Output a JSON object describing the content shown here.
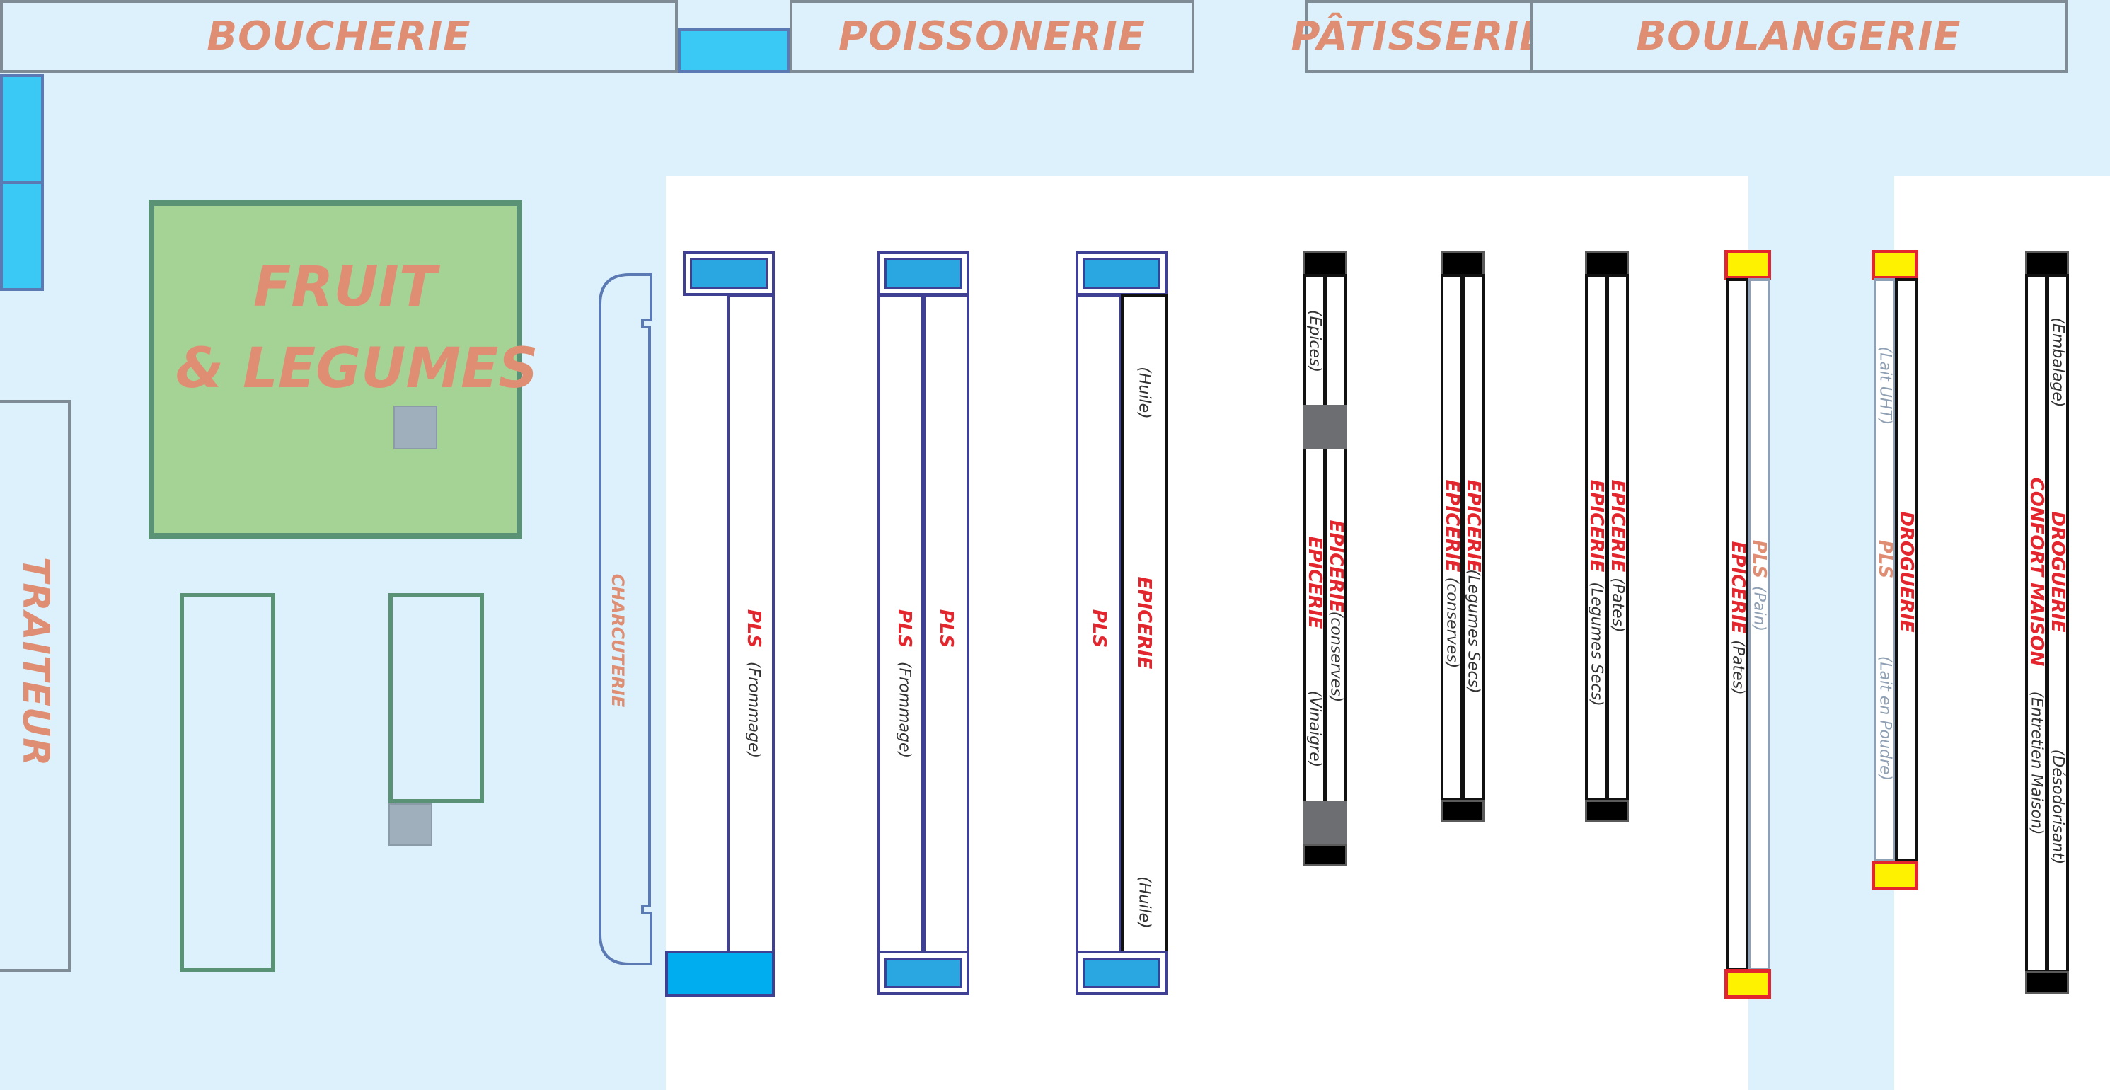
{
  "departments": {
    "boucherie": "BOUCHERIE",
    "poissonerie": "POISSONERIE",
    "patisserie": "PÂTISSERIE",
    "boulangerie": "BOULANGERIE",
    "traiteur": "TRAITEUR",
    "fruits_line1": "FRUIT",
    "fruits_line2": "& LEGUMES",
    "charcuterie": "CHARCUTERIE"
  },
  "aisles": {
    "a1": {
      "main": "PLS",
      "sub": "(Frommage)"
    },
    "a2": {
      "main_left": "PLS",
      "sub_left": "(Frommage)",
      "main_right": "PLS"
    },
    "a3": {
      "main_left": "PLS",
      "main_right": "EPICERIE",
      "sub_top": "(Huile)",
      "sub_bottom": "(Huile)"
    },
    "a4": {
      "sub_top": "(Epices)",
      "main1": "EPICERIE",
      "sub1": "(conserves)",
      "main2": "EPICERIE",
      "sub2": "(Vinaigre)"
    },
    "a5": {
      "main1": "EPICERIE",
      "sub1": "(Legumes Secs)",
      "main2": "EPICERIE",
      "sub2": "(conserves)"
    },
    "a6": {
      "main1": "EPICERIE",
      "sub1": "(Pates)",
      "main2": "EPICERIE",
      "sub2": "(Legumes Secs)"
    },
    "a7": {
      "main1": "PLS",
      "sub1": "(Pain)",
      "main2": "EPICERIE",
      "sub2": "(Pates)"
    },
    "a8": {
      "sub_top": "(Lait UHT)",
      "main_left": "PLS",
      "main_right": "DROGUERIE",
      "sub_bottom": "(Lait en Poudre)"
    },
    "a9": {
      "sub_top": "(Embalage)",
      "main1": "DROGUERIE",
      "main2": "CONFORT MAISON",
      "sub1": "(Désodorisant)",
      "sub2": "(Entretien Maison)"
    }
  },
  "colors": {
    "floor": "#dcf1fb",
    "department_text": "#df8e73",
    "product_red": "#e3262e",
    "fruit_green": "#a5d395",
    "fridge_blue": "#3ac8f4",
    "cap_yellow": "#fff200"
  }
}
